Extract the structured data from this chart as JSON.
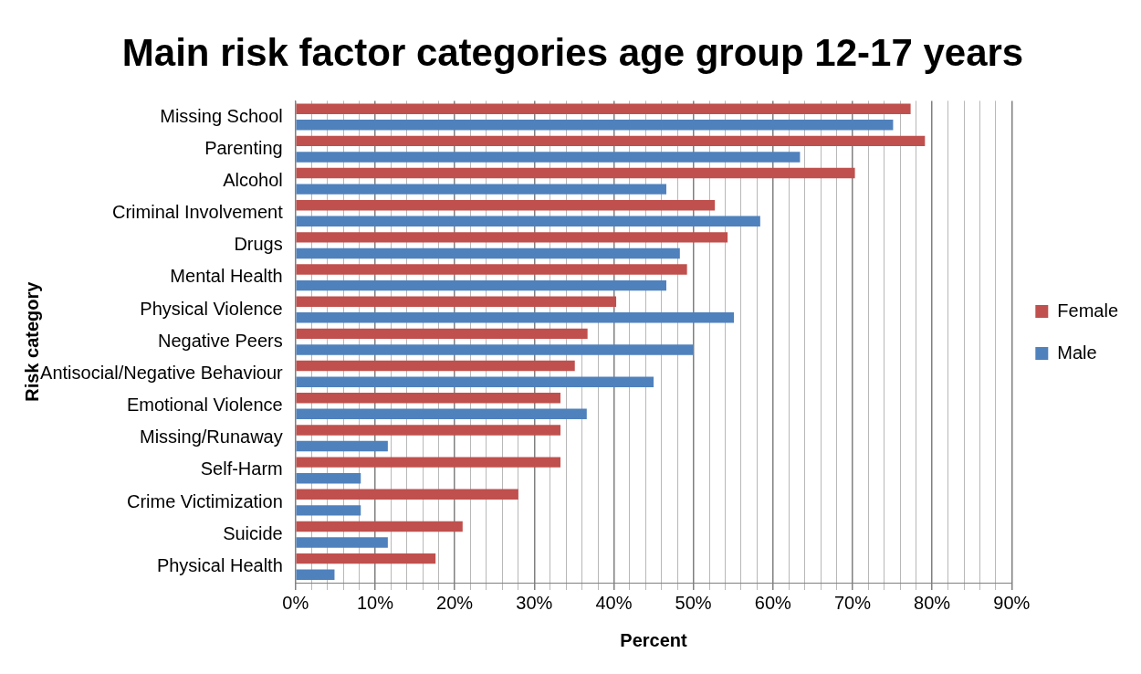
{
  "chart_data": {
    "type": "bar",
    "orientation": "horizontal",
    "title": "Main risk factor categories age group 12-17 years",
    "xlabel": "Percent",
    "ylabel": "Risk category",
    "categories": [
      "Missing School",
      "Parenting",
      "Alcohol",
      "Criminal Involvement",
      "Drugs",
      "Mental Health",
      "Physical Violence",
      "Negative Peers",
      "Antisocial/Negative Behaviour",
      "Emotional Violence",
      "Missing/Runaway",
      "Self-Harm",
      "Crime Victimization",
      "Suicide",
      "Physical Health"
    ],
    "series": [
      {
        "name": "Female",
        "color": "#c0504d",
        "values": [
          77.3,
          79.1,
          70.3,
          52.7,
          54.3,
          49.2,
          40.3,
          36.7,
          35.1,
          33.3,
          33.3,
          33.3,
          28.0,
          21.0,
          17.6
        ]
      },
      {
        "name": "Male",
        "color": "#4f81bd",
        "values": [
          75.1,
          63.4,
          46.6,
          58.4,
          48.3,
          46.6,
          55.1,
          50.0,
          45.0,
          36.6,
          11.6,
          8.2,
          8.2,
          11.6,
          4.9
        ]
      }
    ],
    "xlim": [
      0,
      90
    ],
    "xticks": [
      {
        "value": 0,
        "label": "0%"
      },
      {
        "value": 2,
        "label": null
      },
      {
        "value": 4,
        "label": null
      },
      {
        "value": 6,
        "label": null
      },
      {
        "value": 8,
        "label": null
      },
      {
        "value": 10,
        "label": "10%"
      },
      {
        "value": 12,
        "label": null
      },
      {
        "value": 14,
        "label": null
      },
      {
        "value": 16,
        "label": null
      },
      {
        "value": 18,
        "label": null
      },
      {
        "value": 20,
        "label": "20%"
      },
      {
        "value": 22,
        "label": null
      },
      {
        "value": 24,
        "label": null
      },
      {
        "value": 26,
        "label": null
      },
      {
        "value": 28,
        "label": null
      },
      {
        "value": 30,
        "label": "30%"
      },
      {
        "value": 32,
        "label": null
      },
      {
        "value": 34,
        "label": null
      },
      {
        "value": 36,
        "label": null
      },
      {
        "value": 38,
        "label": null
      },
      {
        "value": 40,
        "label": "40%"
      },
      {
        "value": 42,
        "label": null
      },
      {
        "value": 44,
        "label": null
      },
      {
        "value": 46,
        "label": null
      },
      {
        "value": 48,
        "label": null
      },
      {
        "value": 50,
        "label": "50%"
      },
      {
        "value": 52,
        "label": null
      },
      {
        "value": 54,
        "label": null
      },
      {
        "value": 56,
        "label": null
      },
      {
        "value": 58,
        "label": null
      },
      {
        "value": 60,
        "label": "60%"
      },
      {
        "value": 62,
        "label": null
      },
      {
        "value": 64,
        "label": null
      },
      {
        "value": 66,
        "label": null
      },
      {
        "value": 68,
        "label": null
      },
      {
        "value": 70,
        "label": "70%"
      },
      {
        "value": 72,
        "label": null
      },
      {
        "value": 74,
        "label": null
      },
      {
        "value": 76,
        "label": null
      },
      {
        "value": 78,
        "label": null
      },
      {
        "value": 80,
        "label": "80%"
      },
      {
        "value": 82,
        "label": null
      },
      {
        "value": 84,
        "label": null
      },
      {
        "value": 86,
        "label": null
      },
      {
        "value": 88,
        "label": null
      },
      {
        "value": 90,
        "label": "90%"
      }
    ],
    "grid": "x",
    "legend": "right"
  }
}
